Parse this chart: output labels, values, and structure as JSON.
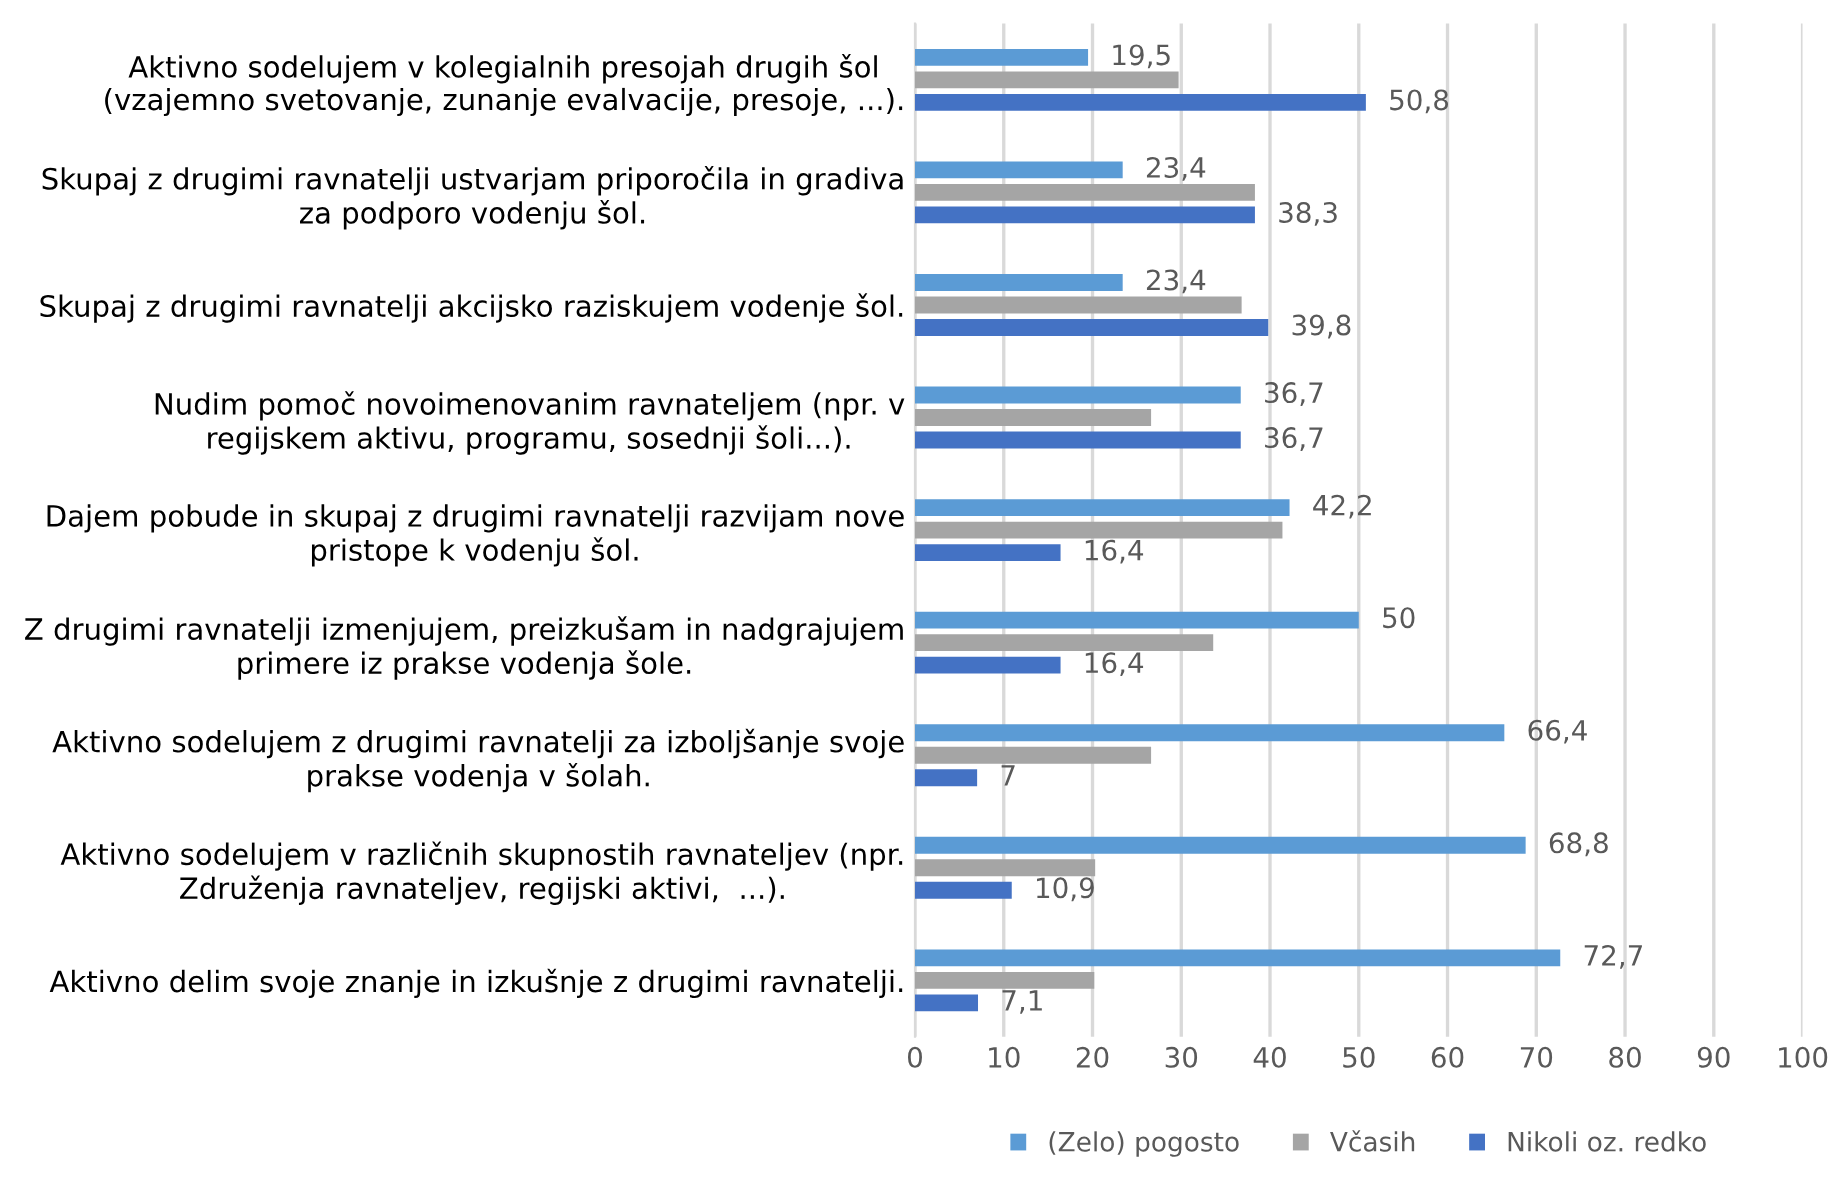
{
  "chart_data": {
    "type": "bar",
    "orientation": "horizontal",
    "categories": [
      "Aktivno sodelujem v kolegialnih presojah drugih šol\n(vzajemno svetovanje, zunanje evalvacije, presoje, ...).",
      "Skupaj z drugimi ravnatelji ustvarjam priporočila in gradiva\nza podporo vodenju šol.",
      "Skupaj z drugimi ravnatelji akcijsko raziskujem vodenje šol.",
      "Nudim pomoč novoimenovanim ravnateljem (npr. v\nregijskem aktivu, programu, sosednji šoli...).",
      "Dajem pobude in skupaj z drugimi ravnatelji razvijam nove\npristope k vodenju šol.",
      "Z drugimi ravnatelji izmenjujem, preizkušam in nadgrajujem\nprimere iz prakse vodenja šole.",
      "Aktivno sodelujem z drugimi ravnatelji za izboljšanje svoje\nprakse vodenja v šolah.",
      "Aktivno sodelujem v različnih skupnostih ravnateljev (npr.\nZdruženja ravnateljev, regijski aktivi,  ...).",
      "Aktivno delim svoje znanje in izkušnje z drugimi ravnatelji."
    ],
    "series": [
      {
        "name": "(Zelo) pogosto",
        "color": "#5b9bd5",
        "values": [
          19.5,
          23.4,
          23.4,
          36.7,
          42.2,
          50,
          66.4,
          68.8,
          72.7
        ],
        "value_labels": [
          "19,5",
          "23,4",
          "23,4",
          "36,7",
          "42,2",
          "50",
          "66,4",
          "68,8",
          "72,7"
        ]
      },
      {
        "name": "Včasih",
        "color": "#a5a5a5",
        "values": [
          29.7,
          38.3,
          36.8,
          26.6,
          41.4,
          33.6,
          26.6,
          20.3,
          20.2
        ]
      },
      {
        "name": "Nikoli oz. redko",
        "color": "#4472c4",
        "values": [
          50.8,
          38.3,
          39.8,
          36.7,
          16.4,
          16.4,
          7,
          10.9,
          7.1
        ],
        "value_labels": [
          "50,8",
          "38,3",
          "39,8",
          "36,7",
          "16,4",
          "16,4",
          "7",
          "10,9",
          "7,1"
        ]
      }
    ],
    "xlim": [
      0,
      100
    ],
    "xticks": [
      0,
      10,
      20,
      30,
      40,
      50,
      60,
      70,
      80,
      90,
      100
    ],
    "grid": "x",
    "legend": "bottom"
  }
}
